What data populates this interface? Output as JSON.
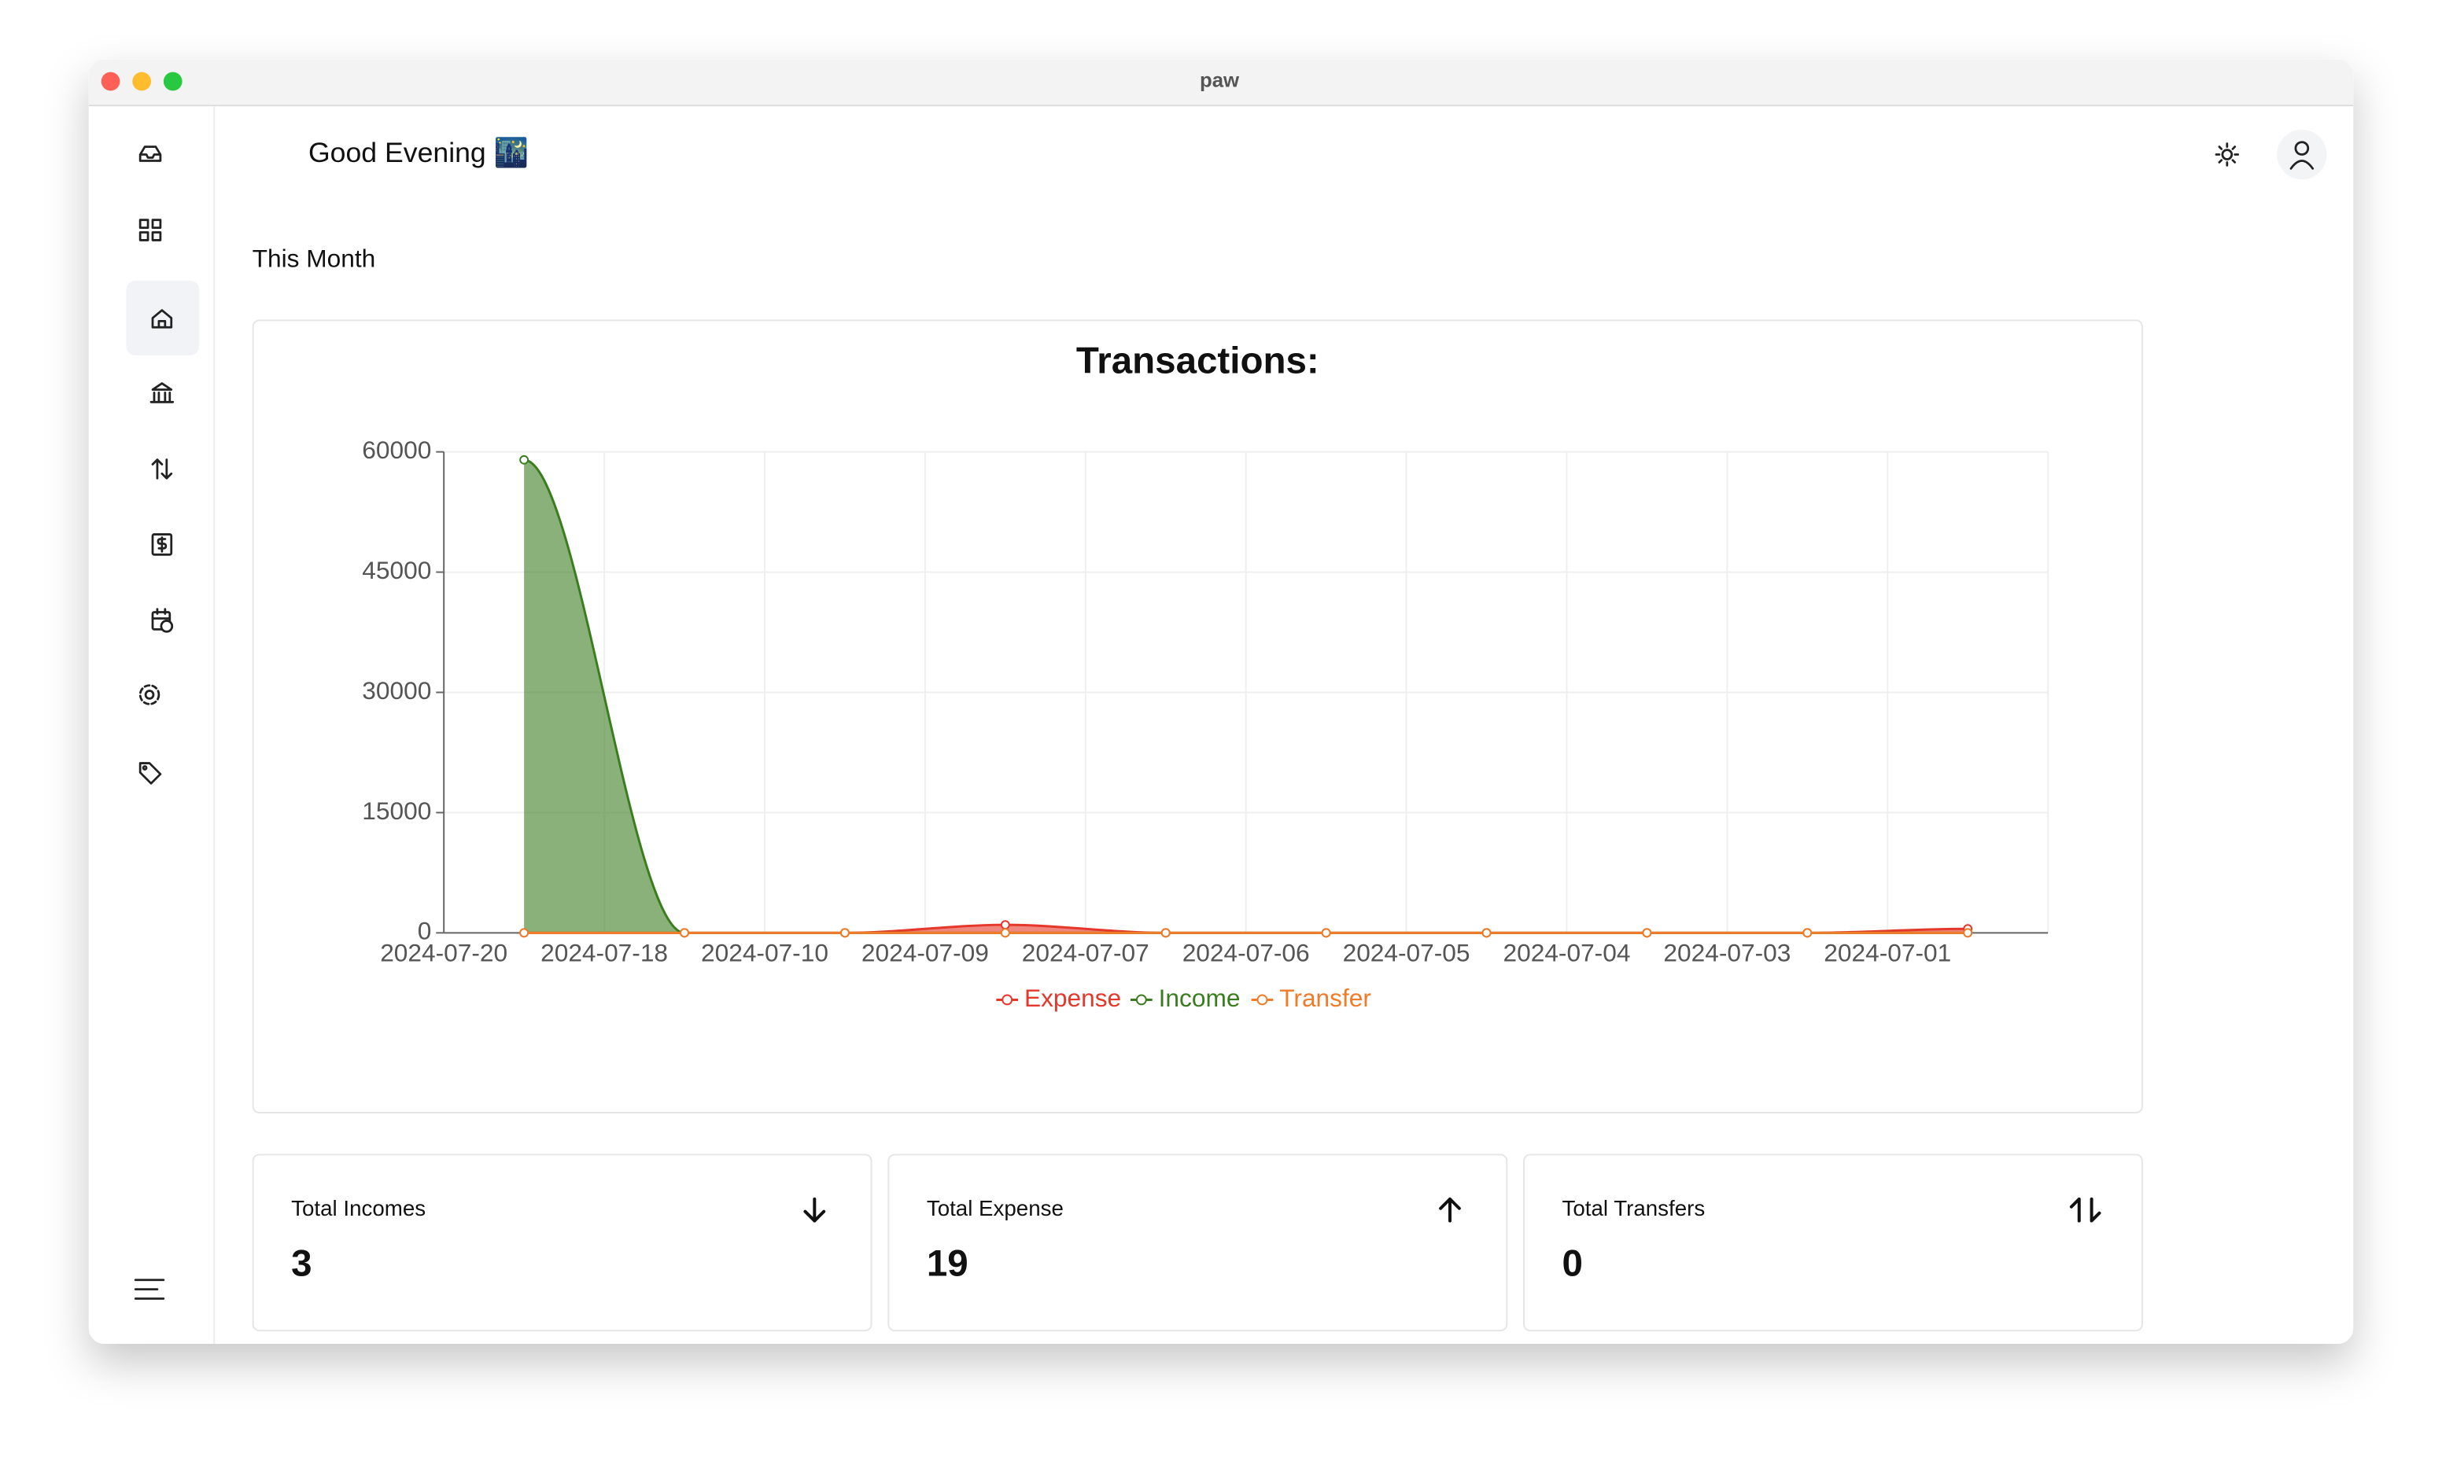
{
  "window_title": "paw",
  "greeting": "Good Evening 🌃",
  "section_title": "This Month",
  "cards": [
    {
      "label": "Total Incomes",
      "value": "3"
    },
    {
      "label": "Total Expense",
      "value": "19"
    },
    {
      "label": "Total Transfers",
      "value": "0"
    }
  ],
  "chart_data": {
    "type": "area",
    "title": "Transactions:",
    "categories": [
      "2024-07-20",
      "2024-07-18",
      "2024-07-10",
      "2024-07-09",
      "2024-07-07",
      "2024-07-06",
      "2024-07-05",
      "2024-07-04",
      "2024-07-03",
      "2024-07-01"
    ],
    "series": [
      {
        "name": "Expense",
        "color": "#e5372a",
        "values": [
          0,
          0,
          0,
          1000,
          0,
          0,
          0,
          0,
          0,
          500
        ]
      },
      {
        "name": "Income",
        "color": "#3a7d1f",
        "values": [
          59000,
          0,
          0,
          0,
          0,
          0,
          0,
          0,
          0,
          0
        ]
      },
      {
        "name": "Transfer",
        "color": "#f07c2a",
        "values": [
          0,
          0,
          0,
          0,
          0,
          0,
          0,
          0,
          0,
          0
        ]
      }
    ],
    "ylim": [
      0,
      60000
    ],
    "yticks": [
      0,
      15000,
      30000,
      45000,
      60000
    ],
    "grid": true,
    "legend": "bottom"
  }
}
